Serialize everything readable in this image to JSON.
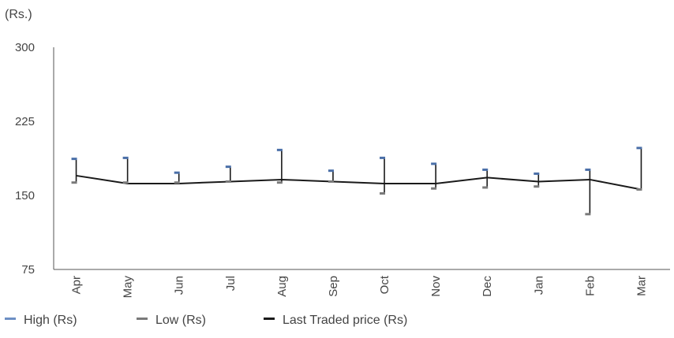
{
  "chart_data": {
    "type": "line",
    "unit_label": "(Rs.)",
    "categories": [
      "Apr",
      "May",
      "Jun",
      "Jul",
      "Aug",
      "Sep",
      "Oct",
      "Nov",
      "Dec",
      "Jan",
      "Feb",
      "Mar"
    ],
    "ylim": [
      75,
      300
    ],
    "yticks": [
      75,
      150,
      225,
      300
    ],
    "series": [
      {
        "name": "High (Rs)",
        "color": "#4a6fa8",
        "values": [
          187,
          188,
          173,
          179,
          196,
          175,
          188,
          182,
          176,
          172,
          176,
          198
        ]
      },
      {
        "name": "Low (Rs)",
        "color": "#7a7a7a",
        "values": [
          163,
          163,
          163,
          164,
          163,
          164,
          152,
          157,
          158,
          159,
          131,
          156
        ]
      },
      {
        "name": "Last Traded price (Rs)",
        "color": "#1a1a1a",
        "values": [
          170,
          162,
          162,
          164,
          166,
          164,
          162,
          162,
          168,
          164,
          166,
          156
        ]
      }
    ],
    "grid": false,
    "legend_position": "bottom-left"
  }
}
